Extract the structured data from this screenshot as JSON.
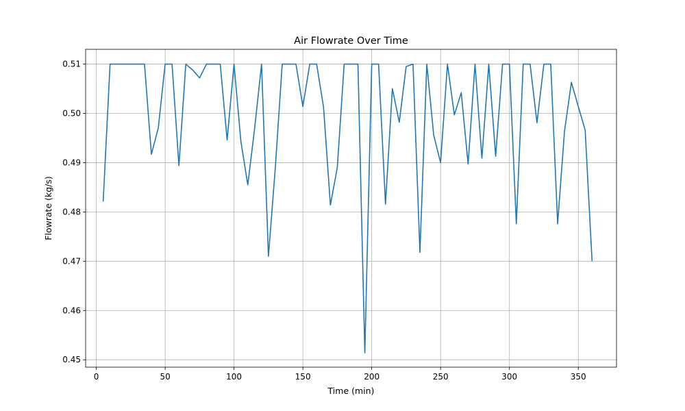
{
  "chart_data": {
    "type": "line",
    "title": "Air Flowrate Over Time",
    "xlabel": "Time (min)",
    "ylabel": "Flowrate (kg/s)",
    "xlim": [
      -7.75,
      377.75
    ],
    "ylim": [
      0.4485,
      0.513
    ],
    "xticks": [
      0,
      50,
      100,
      150,
      200,
      250,
      300,
      350
    ],
    "xtick_labels": [
      "0",
      "50",
      "100",
      "150",
      "200",
      "250",
      "300",
      "350"
    ],
    "yticks": [
      0.45,
      0.46,
      0.47,
      0.48,
      0.49,
      0.5,
      0.51
    ],
    "ytick_labels": [
      "0.45",
      "0.46",
      "0.47",
      "0.48",
      "0.49",
      "0.50",
      "0.51"
    ],
    "grid": true,
    "color": "#1f77b4",
    "x": [
      5,
      10,
      15,
      20,
      25,
      30,
      35,
      40,
      45,
      50,
      55,
      60,
      65,
      70,
      75,
      80,
      85,
      90,
      95,
      100,
      105,
      110,
      115,
      120,
      125,
      130,
      135,
      140,
      145,
      150,
      155,
      160,
      165,
      170,
      175,
      180,
      185,
      190,
      195,
      200,
      205,
      210,
      215,
      220,
      225,
      230,
      235,
      240,
      245,
      250,
      255,
      260,
      265,
      270,
      275,
      280,
      285,
      290,
      295,
      300,
      305,
      310,
      315,
      320,
      325,
      330,
      335,
      340,
      345,
      350,
      355,
      360
    ],
    "y": [
      0.4821,
      0.51,
      0.51,
      0.51,
      0.51,
      0.51,
      0.51,
      0.4917,
      0.497,
      0.51,
      0.51,
      0.4894,
      0.51,
      0.5088,
      0.5072,
      0.51,
      0.51,
      0.51,
      0.4946,
      0.51,
      0.4943,
      0.4855,
      0.497,
      0.51,
      0.471,
      0.489,
      0.51,
      0.51,
      0.51,
      0.5014,
      0.51,
      0.51,
      0.5013,
      0.4814,
      0.489,
      0.51,
      0.51,
      0.51,
      0.4514,
      0.51,
      0.51,
      0.4816,
      0.505,
      0.4982,
      0.5095,
      0.51,
      0.4718,
      0.51,
      0.4956,
      0.49,
      0.51,
      0.4997,
      0.5042,
      0.4897,
      0.51,
      0.4909,
      0.51,
      0.4913,
      0.51,
      0.51,
      0.4776,
      0.51,
      0.51,
      0.4981,
      0.51,
      0.51,
      0.4776,
      0.4964,
      0.5063,
      0.5014,
      0.4966,
      0.47
    ]
  }
}
